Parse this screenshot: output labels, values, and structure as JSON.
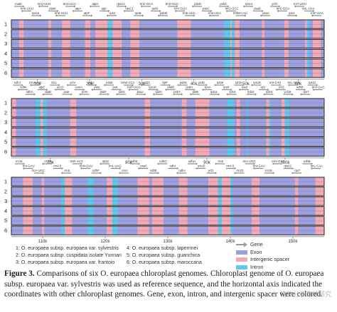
{
  "colors": {
    "exon": "#9da0e0",
    "intergenic": "#f4a9b6",
    "intron": "#5ec9ee",
    "row_border": "#222222"
  },
  "panels": [
    {
      "row_labels": [
        "1",
        "2",
        "3",
        "4",
        "5",
        "6"
      ],
      "kb_ticks": [
        "10k",
        "20k",
        "30k",
        "40k",
        "50k",
        "60k"
      ],
      "gene_labels": [
        "matK",
        "trnK-UUU",
        "rps16",
        "trnQ-UUG",
        "psbK",
        "trnS-GCU",
        "trnG-UCC",
        "atpA",
        "atpF",
        "atpH",
        "atpI",
        "rps2",
        "rpoC2",
        "rpoC1",
        "rpoB",
        "trnC-GCA",
        "petN",
        "psbM",
        "trnD-GUC",
        "trnY-GUA",
        "trnE-UUC",
        "psbD",
        "psbC",
        "trnS-UGA",
        "psbZ",
        "trnG-GCC",
        "trnfM-CAU",
        "rps14",
        "psaB",
        "psaA",
        "ycf3",
        "trnS-GGA",
        "rps4",
        "trnT-UGU",
        "trnL-UAA",
        "trnF-GAA"
      ]
    },
    {
      "row_labels": [
        "1",
        "2",
        "3",
        "4",
        "5",
        "6"
      ],
      "kb_ticks": [
        "70k",
        "80k",
        "90k",
        "100k"
      ],
      "gene_labels": [
        "ndhJ",
        "ndhK",
        "ndhC",
        "trnV-UAC",
        "atpE",
        "atpB",
        "rbcL",
        "accD",
        "psaI",
        "ycf4",
        "cemA",
        "petA",
        "psbJ",
        "psbL",
        "psbF",
        "psbE",
        "petL",
        "petG",
        "trnW-CCA",
        "trnP-UGG",
        "psaJ",
        "rpl33",
        "rps18",
        "rpl20",
        "clpP",
        "psbB",
        "psbT",
        "psbN",
        "psbH",
        "petB",
        "petD",
        "rpoA",
        "rps11",
        "rpl36",
        "rps8",
        "rpl14",
        "rpl16",
        "rps3",
        "rpl22",
        "rps19",
        "rpl2",
        "rpl23",
        "trnI-CAU",
        "ycf2",
        "ycf15",
        "trnL-CAA",
        "ndhB",
        "rps7",
        "rps12",
        "trnV-GAC"
      ]
    },
    {
      "row_labels": [
        "1",
        "2",
        "3",
        "4",
        "5",
        "6"
      ],
      "kb_ticks": [
        "110k",
        "120k",
        "130k",
        "140k",
        "150k"
      ],
      "gene_labels": [
        "rrn16",
        "trnI-GAU",
        "trnA-UGC",
        "rrn23",
        "rrn4.5",
        "rrn5",
        "trnR-ACG",
        "trnN-GUU",
        "ndhF",
        "rpl32",
        "trnL-UAG",
        "ccsA",
        "ndhD",
        "psaC",
        "ndhE",
        "ndhG",
        "ndhI",
        "ndhA",
        "ndhH",
        "rps15",
        "ycf1",
        "rrn5",
        "rrn4.5",
        "rrn23",
        "trnA-UGC",
        "trnI-GAU",
        "rrn16",
        "trnV-GAC",
        "rps12",
        "rps7",
        "ndhB",
        "trnL-CAA"
      ]
    }
  ],
  "legend_taxa": [
    "1: O. europaea subsp. europaea var. sylvestris",
    "2: O. europaea subsp. cuspidata isolate Yunnan",
    "3: O. europaea subsp. europaea var. frantoio",
    "4: O. europaea subsp. laperrinei",
    "5: O. europaea subsp. guanchica",
    "6: O. europaea subsp. maroccana"
  ],
  "legend_items": [
    "Gene",
    "Exon",
    "Intergenic spacer",
    "Intron"
  ],
  "caption": {
    "label": "Figure 3.",
    "text": "Comparisons of six O. europaea chloroplast genomes. Chloroplast genome of O. europaea subsp. europaea var. sylvestris was used as reference sequence, and the horizontal axis indicated the coordinates with other chloroplast genomes. Gene, exon, intron, and intergenic spacer were colored."
  },
  "watermark": "植物分子育种研究"
}
